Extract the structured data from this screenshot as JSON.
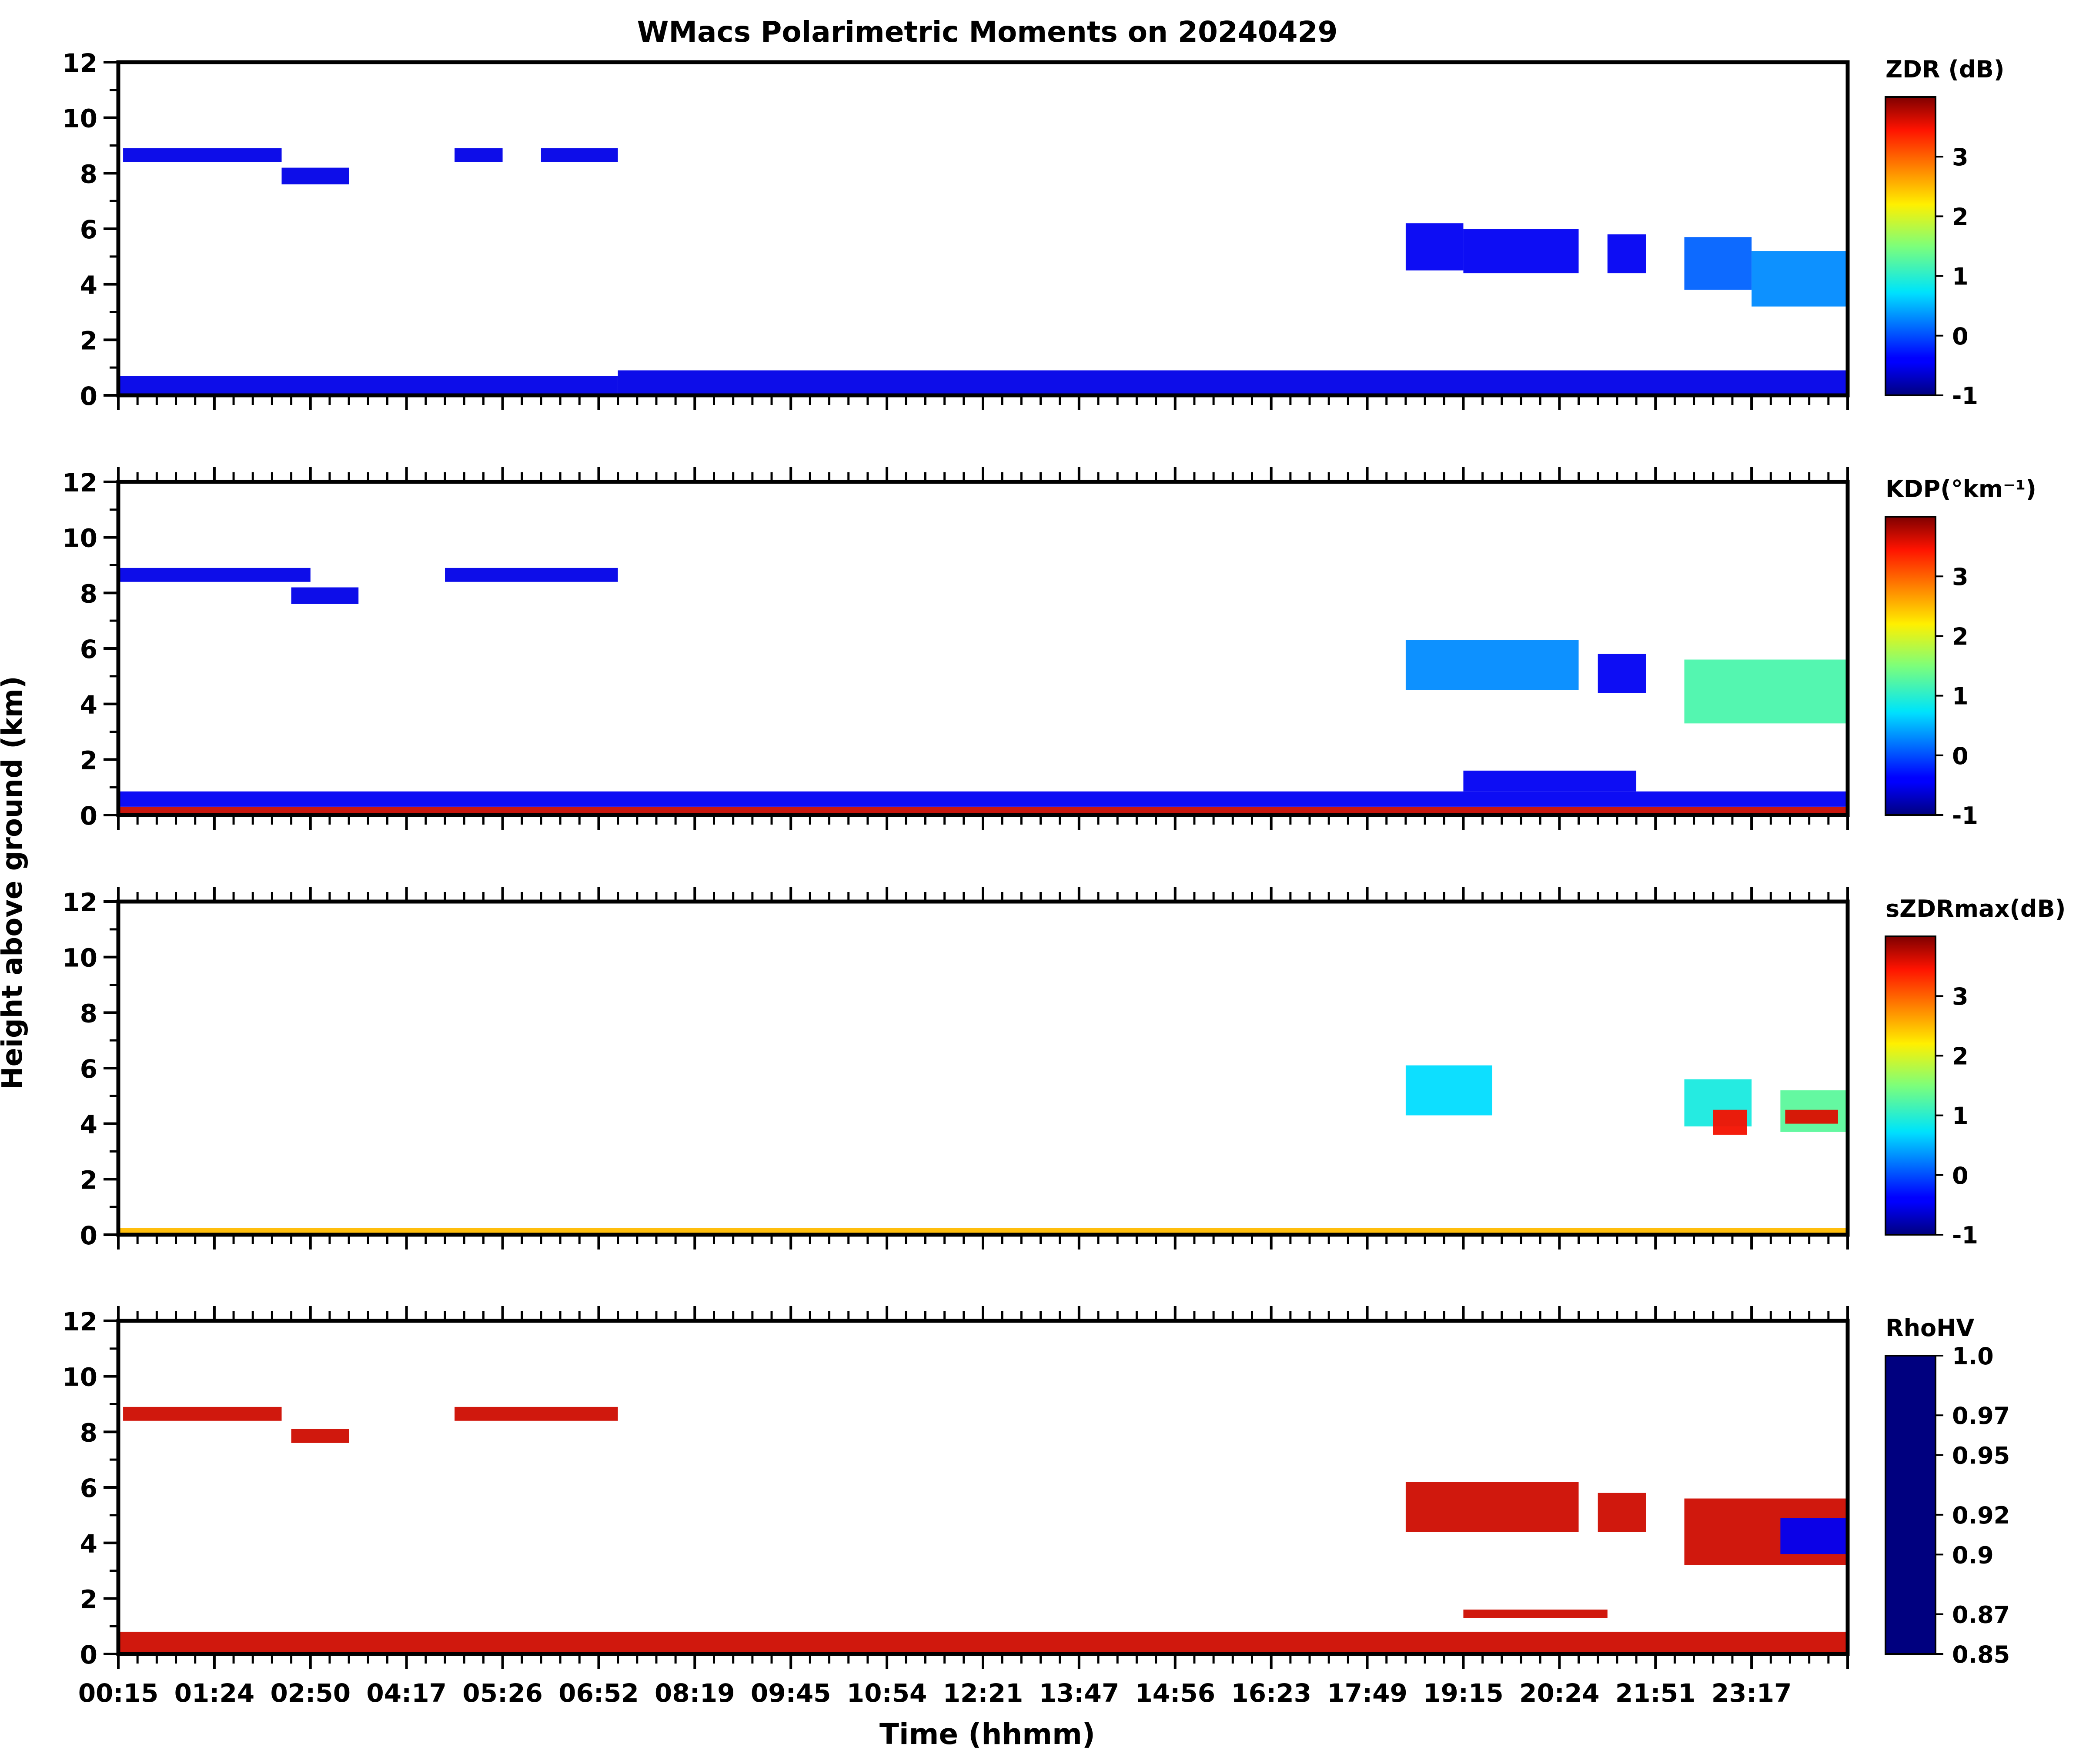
{
  "chart_data": {
    "type": "heatmap",
    "title": "WMacs Polarimetric Moments on 20240429",
    "xlabel": "Time (hhmm)",
    "ylabel": "Height above ground (km)",
    "x_tick_labels": [
      "00:15",
      "01:24",
      "02:50",
      "04:17",
      "05:26",
      "06:52",
      "08:19",
      "09:45",
      "10:54",
      "12:21",
      "13:47",
      "14:56",
      "16:23",
      "17:49",
      "19:15",
      "20:24",
      "21:51",
      "23:17"
    ],
    "x_range": [
      0,
      18
    ],
    "ylim": [
      0,
      12
    ],
    "y_ticks": [
      0,
      2,
      4,
      6,
      8,
      10,
      12
    ],
    "panels": [
      {
        "name": "zdr",
        "colorbar_label": "ZDR (dB)",
        "colorbar_range": [
          -1,
          4
        ],
        "colorbar_ticks": [
          -1,
          0,
          1,
          2,
          3
        ],
        "colorbar_tick_labels": [
          "-1",
          "0",
          "1",
          "2",
          "3"
        ],
        "colormap": "jet",
        "cells": [
          {
            "x0": 0.0,
            "x1": 5.2,
            "y0": 0.05,
            "y1": 0.7,
            "v": -0.55
          },
          {
            "x0": 5.2,
            "x1": 18.0,
            "y0": 0.05,
            "y1": 0.9,
            "v": -0.55
          },
          {
            "x0": 13.4,
            "x1": 14.0,
            "y0": 4.5,
            "y1": 6.2,
            "v": -0.5
          },
          {
            "x0": 14.0,
            "x1": 15.2,
            "y0": 4.4,
            "y1": 6.0,
            "v": -0.5
          },
          {
            "x0": 15.5,
            "x1": 15.9,
            "y0": 4.4,
            "y1": 5.8,
            "v": -0.5
          },
          {
            "x0": 16.3,
            "x1": 17.0,
            "y0": 3.8,
            "y1": 5.7,
            "v": 0.1
          },
          {
            "x0": 17.0,
            "x1": 18.0,
            "y0": 3.2,
            "y1": 5.2,
            "v": 0.3
          },
          {
            "x0": 0.05,
            "x1": 1.7,
            "y0": 8.4,
            "y1": 8.9,
            "v": -0.55
          },
          {
            "x0": 1.7,
            "x1": 2.4,
            "y0": 7.6,
            "y1": 8.2,
            "v": -0.55
          },
          {
            "x0": 3.5,
            "x1": 4.0,
            "y0": 8.4,
            "y1": 8.9,
            "v": -0.55
          },
          {
            "x0": 4.4,
            "x1": 5.2,
            "y0": 8.4,
            "y1": 8.9,
            "v": -0.55
          }
        ]
      },
      {
        "name": "kdp",
        "colorbar_label": "KDP(°km⁻¹)",
        "colorbar_range": [
          -1,
          4
        ],
        "colorbar_ticks": [
          -1,
          0,
          1,
          2,
          3
        ],
        "colorbar_tick_labels": [
          "-1",
          "0",
          "1",
          "2",
          "3"
        ],
        "colormap": "jet",
        "cells": [
          {
            "x0": 0.0,
            "x1": 18.0,
            "y0": 0.0,
            "y1": 0.3,
            "v": 3.7
          },
          {
            "x0": 0.0,
            "x1": 18.0,
            "y0": 0.3,
            "y1": 0.85,
            "v": -0.5
          },
          {
            "x0": 14.0,
            "x1": 15.8,
            "y0": 0.85,
            "y1": 1.6,
            "v": -0.5
          },
          {
            "x0": 0.0,
            "x1": 2.0,
            "y0": 8.4,
            "y1": 8.9,
            "v": -0.55
          },
          {
            "x0": 1.8,
            "x1": 2.5,
            "y0": 7.6,
            "y1": 8.2,
            "v": -0.55
          },
          {
            "x0": 3.4,
            "x1": 5.2,
            "y0": 8.4,
            "y1": 8.9,
            "v": -0.55
          },
          {
            "x0": 13.4,
            "x1": 15.2,
            "y0": 4.5,
            "y1": 6.3,
            "v": 0.3
          },
          {
            "x0": 15.4,
            "x1": 15.9,
            "y0": 4.4,
            "y1": 5.8,
            "v": -0.5
          },
          {
            "x0": 16.3,
            "x1": 18.0,
            "y0": 3.3,
            "y1": 5.6,
            "v": 1.2
          }
        ]
      },
      {
        "name": "szdrmax",
        "colorbar_label": "sZDRmax(dB)",
        "colorbar_range": [
          -1,
          4
        ],
        "colorbar_ticks": [
          -1,
          0,
          1,
          2,
          3
        ],
        "colorbar_tick_labels": [
          "-1",
          "0",
          "1",
          "2",
          "3"
        ],
        "colormap": "jet",
        "cells": [
          {
            "x0": 0.0,
            "x1": 18.0,
            "y0": 0.0,
            "y1": 0.25,
            "v": 2.5
          },
          {
            "x0": 13.4,
            "x1": 14.3,
            "y0": 4.3,
            "y1": 6.1,
            "v": 0.7
          },
          {
            "x0": 16.3,
            "x1": 17.0,
            "y0": 3.9,
            "y1": 5.6,
            "v": 0.9
          },
          {
            "x0": 16.6,
            "x1": 16.95,
            "y0": 3.6,
            "y1": 4.5,
            "v": 3.5
          },
          {
            "x0": 17.3,
            "x1": 18.0,
            "y0": 3.7,
            "y1": 5.2,
            "v": 1.3
          },
          {
            "x0": 17.35,
            "x1": 17.9,
            "y0": 4.0,
            "y1": 4.5,
            "v": 3.6
          }
        ]
      },
      {
        "name": "rhohv",
        "colorbar_label": "RhoHV",
        "colorbar_range": [
          0.85,
          1.0
        ],
        "colorbar_ticks": [
          0.85,
          0.87,
          0.9,
          0.92,
          0.95,
          0.97,
          1.0
        ],
        "colorbar_tick_labels": [
          "0.85",
          "0.87",
          "0.9",
          "0.92",
          "0.95",
          "0.97",
          "1.0"
        ],
        "colormap": "jet_r",
        "cells": [
          {
            "x0": 0.0,
            "x1": 18.0,
            "y0": 0.05,
            "y1": 0.8,
            "v": 0.86
          },
          {
            "x0": 14.0,
            "x1": 15.5,
            "y0": 1.3,
            "y1": 1.6,
            "v": 0.86
          },
          {
            "x0": 0.05,
            "x1": 1.7,
            "y0": 8.4,
            "y1": 8.9,
            "v": 0.86
          },
          {
            "x0": 1.8,
            "x1": 2.4,
            "y0": 7.6,
            "y1": 8.1,
            "v": 0.86
          },
          {
            "x0": 3.5,
            "x1": 5.2,
            "y0": 8.4,
            "y1": 8.9,
            "v": 0.86
          },
          {
            "x0": 13.4,
            "x1": 15.2,
            "y0": 4.4,
            "y1": 6.2,
            "v": 0.86
          },
          {
            "x0": 15.4,
            "x1": 15.9,
            "y0": 4.4,
            "y1": 5.8,
            "v": 0.86
          },
          {
            "x0": 16.3,
            "x1": 18.0,
            "y0": 3.2,
            "y1": 5.6,
            "v": 0.86
          },
          {
            "x0": 17.3,
            "x1": 18.0,
            "y0": 3.6,
            "y1": 4.9,
            "v": 0.985
          }
        ]
      }
    ]
  }
}
